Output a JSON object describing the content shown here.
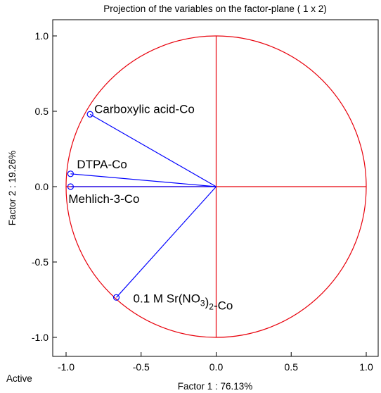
{
  "chart_data": {
    "type": "scatter",
    "title": "Projection of the variables on the factor-plane (  1 x   2)",
    "xlabel": "Factor 1 : 76.13%",
    "ylabel": "Factor 2 : 19.26%",
    "footer": "Active",
    "xlim": [
      -1.1,
      1.1
    ],
    "ylim": [
      -1.1,
      1.1
    ],
    "x_ticks": [
      -1.0,
      -0.5,
      0.0,
      0.5,
      1.0
    ],
    "x_tick_labels": [
      "-1.0",
      "-0.5",
      "0.0",
      "0.5",
      "1.0"
    ],
    "y_ticks": [
      1.0,
      0.5,
      0.0,
      -0.5,
      -1.0
    ],
    "y_tick_labels": [
      "1.0",
      "0.5",
      "0.0",
      "-0.5",
      "-1.0"
    ],
    "unit_circle": true,
    "grid": false,
    "colors": {
      "circle": "#e8000b",
      "vectors": "#0000ff",
      "axes_lines": "#e8000b"
    },
    "points": [
      {
        "label": "Carboxylic acid-Co",
        "x": -0.84,
        "y": 0.48
      },
      {
        "label": "DTPA-Co",
        "x": -0.97,
        "y": 0.085
      },
      {
        "label": "Mehlich-3-Co",
        "x": -0.97,
        "y": 0.0
      },
      {
        "label_main": "0.1 M Sr(NO",
        "label_sub": "3",
        "label_tail": ")",
        "label_sub2": "2",
        "label_end": "-Co",
        "x": -0.665,
        "y": -0.735
      }
    ]
  }
}
